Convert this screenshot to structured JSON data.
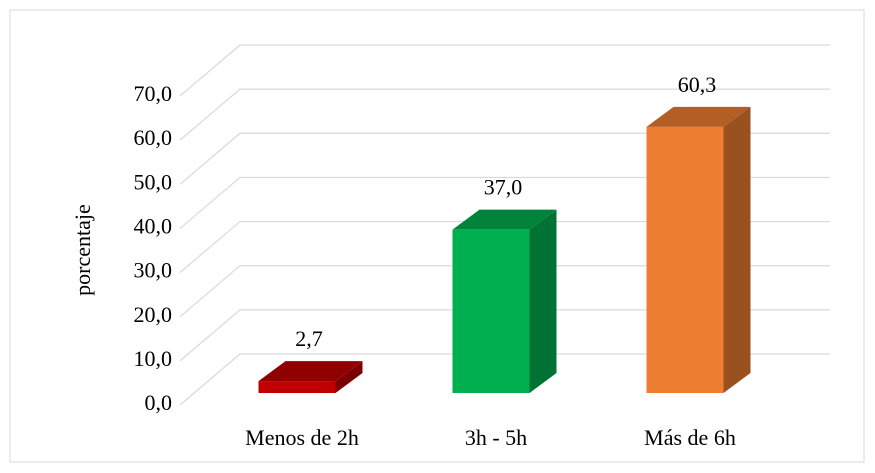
{
  "chart_data": {
    "type": "bar3d",
    "y_label": "porcentaje",
    "categories": [
      "Menos de 2h",
      "3h - 5h",
      "Más de 6h"
    ],
    "values": [
      2.7,
      37.0,
      60.3
    ],
    "value_labels": [
      "2,7",
      "37,0",
      "60,3"
    ],
    "colors": [
      "#c00000",
      "#00b050",
      "#ed7d31"
    ],
    "ylim": [
      0,
      70
    ],
    "yticks": [
      {
        "value": 0,
        "label": "0,0"
      },
      {
        "value": 10,
        "label": "10,0"
      },
      {
        "value": 20,
        "label": "20,0"
      },
      {
        "value": 30,
        "label": "30,0"
      },
      {
        "value": 40,
        "label": "40,0"
      },
      {
        "value": 50,
        "label": "50,0"
      },
      {
        "value": 60,
        "label": "60,0"
      },
      {
        "value": 70,
        "label": "70,0"
      }
    ],
    "grid": true
  }
}
